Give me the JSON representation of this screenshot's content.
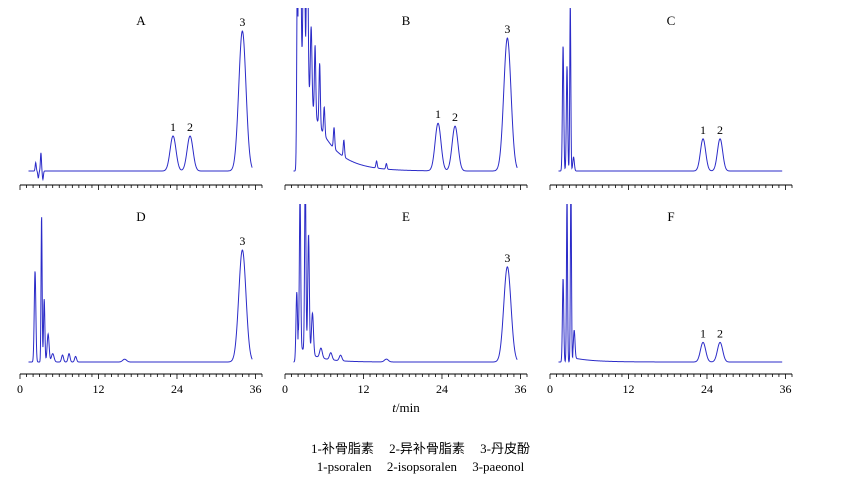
{
  "chart_data": {
    "type": "line",
    "xlabel_var": "t",
    "xlabel_unit": "/min",
    "xlim": [
      0,
      37
    ],
    "xticks": [
      0,
      12,
      24,
      36
    ],
    "grid": false,
    "panels": [
      {
        "label": "A",
        "peaks": [
          {
            "t": 23.4,
            "height": 0.25,
            "width": 0.45,
            "label": "1"
          },
          {
            "t": 26.0,
            "height": 0.25,
            "width": 0.45,
            "label": "2"
          },
          {
            "t": 34.0,
            "height": 1.0,
            "width": 0.55,
            "label": "3"
          }
        ],
        "noise": [
          {
            "t": 2.4,
            "height": 0.06,
            "width": 0.08
          },
          {
            "t": 2.8,
            "height": -0.05,
            "width": 0.08
          },
          {
            "t": 3.2,
            "height": 0.13,
            "width": 0.08
          },
          {
            "t": 3.5,
            "height": -0.06,
            "width": 0.08
          }
        ]
      },
      {
        "label": "B",
        "peaks": [
          {
            "t": 23.4,
            "height": 0.34,
            "width": 0.45,
            "label": "1"
          },
          {
            "t": 26.0,
            "height": 0.32,
            "width": 0.45,
            "label": "2"
          },
          {
            "t": 34.0,
            "height": 0.95,
            "width": 0.55,
            "label": "3"
          }
        ],
        "noise": [
          {
            "t": 1.9,
            "height": 1.5,
            "width": 0.1
          },
          {
            "t": 2.3,
            "height": 1.6,
            "width": 0.12
          },
          {
            "t": 2.9,
            "height": 1.5,
            "width": 0.12
          },
          {
            "t": 3.4,
            "height": 1.4,
            "width": 0.12
          },
          {
            "t": 4.0,
            "height": 0.55,
            "width": 0.12
          },
          {
            "t": 4.6,
            "height": 0.5,
            "width": 0.1
          },
          {
            "t": 5.3,
            "height": 0.45,
            "width": 0.1
          },
          {
            "t": 6.0,
            "height": 0.2,
            "width": 0.1
          },
          {
            "t": 7.5,
            "height": 0.15,
            "width": 0.1
          },
          {
            "t": 9.0,
            "height": 0.12,
            "width": 0.1
          },
          {
            "t": 14.0,
            "height": 0.05,
            "width": 0.1
          },
          {
            "t": 15.5,
            "height": 0.04,
            "width": 0.1
          }
        ],
        "decay": {
          "amp": 0.9,
          "tau": 3.2,
          "start": 2.0
        }
      },
      {
        "label": "C",
        "peaks": [
          {
            "t": 23.4,
            "height": 0.23,
            "width": 0.4,
            "label": "1"
          },
          {
            "t": 26.0,
            "height": 0.23,
            "width": 0.4,
            "label": "2"
          }
        ],
        "noise": [
          {
            "t": 2.0,
            "height": 0.9,
            "width": 0.1
          },
          {
            "t": 2.6,
            "height": 0.75,
            "width": 0.1
          },
          {
            "t": 3.1,
            "height": 1.2,
            "width": 0.08
          },
          {
            "t": 3.6,
            "height": 0.1,
            "width": 0.12
          }
        ]
      },
      {
        "label": "D",
        "peaks": [
          {
            "t": 34.0,
            "height": 0.8,
            "width": 0.55,
            "label": "3"
          }
        ],
        "noise": [
          {
            "t": 2.3,
            "height": 0.65,
            "width": 0.12
          },
          {
            "t": 3.3,
            "height": 1.05,
            "width": 0.08
          },
          {
            "t": 3.7,
            "height": 0.45,
            "width": 0.1
          },
          {
            "t": 4.3,
            "height": 0.2,
            "width": 0.15
          },
          {
            "t": 5.0,
            "height": 0.06,
            "width": 0.2
          },
          {
            "t": 6.5,
            "height": 0.05,
            "width": 0.15
          },
          {
            "t": 7.5,
            "height": 0.06,
            "width": 0.15
          },
          {
            "t": 8.5,
            "height": 0.04,
            "width": 0.15
          },
          {
            "t": 16.0,
            "height": 0.02,
            "width": 0.3
          }
        ]
      },
      {
        "label": "E",
        "peaks": [
          {
            "t": 34.0,
            "height": 0.68,
            "width": 0.55,
            "label": "3"
          }
        ],
        "noise": [
          {
            "t": 1.8,
            "height": 0.5,
            "width": 0.12
          },
          {
            "t": 2.3,
            "height": 1.1,
            "width": 0.1
          },
          {
            "t": 3.1,
            "height": 1.3,
            "width": 0.1
          },
          {
            "t": 3.6,
            "height": 0.85,
            "width": 0.12
          },
          {
            "t": 4.2,
            "height": 0.3,
            "width": 0.15
          },
          {
            "t": 5.5,
            "height": 0.07,
            "width": 0.2
          },
          {
            "t": 7.0,
            "height": 0.05,
            "width": 0.2
          },
          {
            "t": 8.5,
            "height": 0.04,
            "width": 0.2
          },
          {
            "t": 15.5,
            "height": 0.02,
            "width": 0.3
          }
        ],
        "decay": {
          "amp": 0.12,
          "tau": 2.5,
          "start": 2.0
        }
      },
      {
        "label": "F",
        "peaks": [
          {
            "t": 23.4,
            "height": 0.14,
            "width": 0.4,
            "label": "1"
          },
          {
            "t": 26.0,
            "height": 0.14,
            "width": 0.4,
            "label": "2"
          }
        ],
        "noise": [
          {
            "t": 2.0,
            "height": 0.6,
            "width": 0.1
          },
          {
            "t": 2.6,
            "height": 1.2,
            "width": 0.08
          },
          {
            "t": 3.2,
            "height": 1.3,
            "width": 0.08
          },
          {
            "t": 3.7,
            "height": 0.2,
            "width": 0.12
          }
        ],
        "decay": {
          "amp": 0.03,
          "tau": 3.0,
          "start": 3.5
        }
      }
    ]
  },
  "legend": {
    "zh": [
      "1-补骨脂素",
      "2-异补骨脂素",
      "3-丹皮酚"
    ],
    "en": [
      "1-psoralen",
      "2-isopsoralen",
      "3-paeonol"
    ]
  },
  "colors": {
    "trace": "#2b2bc8",
    "axis": "#000000"
  }
}
